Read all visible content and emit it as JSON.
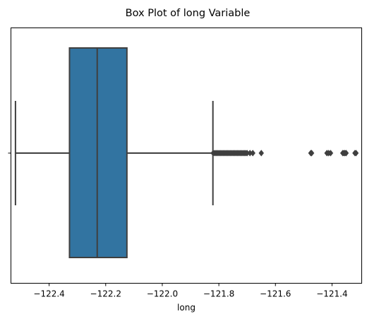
{
  "chart_data": {
    "type": "box",
    "title": "Box Plot of long Variable",
    "xlabel": "long",
    "ylabel": "",
    "xlim": [
      -122.535,
      -121.295
    ],
    "xticks": [
      -122.4,
      -122.2,
      -122.0,
      -121.8,
      -121.6,
      -121.4
    ],
    "xtick_labels": [
      "−122.4",
      "−122.2",
      "−122.0",
      "−121.8",
      "−121.6",
      "−121.4"
    ],
    "yticks": [
      ""
    ],
    "grid": false,
    "box": {
      "whisker_low": -122.519,
      "q1": -122.328,
      "median": -122.23,
      "q3": -122.125,
      "whisker_high": -121.821,
      "outliers": [
        -121.82,
        -121.815,
        -121.81,
        -121.805,
        -121.8,
        -121.795,
        -121.79,
        -121.785,
        -121.78,
        -121.775,
        -121.77,
        -121.765,
        -121.76,
        -121.755,
        -121.75,
        -121.745,
        -121.74,
        -121.735,
        -121.73,
        -121.725,
        -121.72,
        -121.715,
        -121.71,
        -121.705,
        -121.7,
        -121.69,
        -121.68,
        -121.65,
        -121.475,
        -121.472,
        -121.418,
        -121.412,
        -121.405,
        -121.362,
        -121.358,
        -121.354,
        -121.35,
        -121.319,
        -121.315
      ]
    },
    "colors": {
      "box_fill": "#3274a1",
      "line": "#3f3f3f"
    }
  }
}
